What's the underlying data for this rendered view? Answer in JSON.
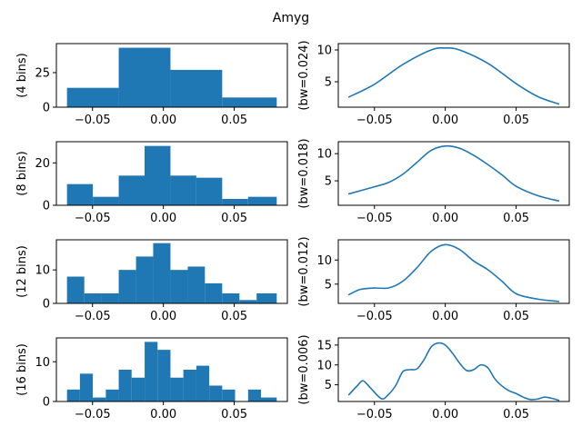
{
  "chart_data": {
    "title": "Amyg",
    "xticks": [
      -0.05,
      0.0,
      0.05
    ],
    "xtick_labels": [
      "−0.05",
      "0.00",
      "0.05"
    ],
    "xlim": [
      -0.0755,
      0.0875
    ],
    "histograms": [
      {
        "type": "bar",
        "ylabel": "(4 bins)",
        "ylim": [
          0,
          46
        ],
        "yticks": [
          0,
          25
        ],
        "edges": [
          -0.068,
          -0.0315,
          0.005,
          0.0415,
          0.08
        ],
        "counts": [
          14,
          43,
          27,
          7
        ]
      },
      {
        "type": "bar",
        "ylabel": "(8 bins)",
        "ylim": [
          0,
          30
        ],
        "yticks": [
          0,
          20
        ],
        "edges": [
          -0.068,
          -0.04975,
          -0.0315,
          -0.01325,
          0.005,
          0.02325,
          0.0415,
          0.05975,
          0.08
        ],
        "counts": [
          10,
          4,
          14,
          28,
          14,
          13,
          3,
          4
        ]
      },
      {
        "type": "bar",
        "ylabel": "(12 bins)",
        "ylim": [
          0,
          19
        ],
        "yticks": [
          0,
          10
        ],
        "edges": [
          -0.068,
          -0.0558,
          -0.0437,
          -0.0315,
          -0.0193,
          -0.0072,
          0.005,
          0.0172,
          0.0293,
          0.0415,
          0.0537,
          0.0658,
          0.08
        ],
        "counts": [
          8,
          3,
          3,
          10,
          14,
          18,
          10,
          11,
          6,
          3,
          1,
          3
        ]
      },
      {
        "type": "bar",
        "ylabel": "(16 bins)",
        "ylim": [
          0,
          16
        ],
        "yticks": [
          0,
          10
        ],
        "edges": [
          -0.068,
          -0.0589,
          -0.0498,
          -0.0406,
          -0.0315,
          -0.0224,
          -0.0132,
          -0.0041,
          0.005,
          0.0141,
          0.0233,
          0.0324,
          0.0415,
          0.0506,
          0.0598,
          0.0689,
          0.08
        ],
        "counts": [
          3,
          7,
          1,
          3,
          8,
          6,
          15,
          13,
          6,
          8,
          9,
          4,
          3,
          0,
          3,
          1
        ]
      }
    ],
    "kdes": [
      {
        "type": "line",
        "ylabel": "(bw=0.024)",
        "ylim": [
          1.0,
          11.0
        ],
        "yticks": [
          5,
          10
        ],
        "x": [
          -0.068,
          -0.05,
          -0.03,
          -0.01,
          0.0,
          0.01,
          0.03,
          0.05,
          0.065,
          0.08
        ],
        "y": [
          2.6,
          4.6,
          7.7,
          10.0,
          10.3,
          10.0,
          7.9,
          4.7,
          2.7,
          1.5
        ]
      },
      {
        "type": "line",
        "ylabel": "(bw=0.018)",
        "ylim": [
          0.5,
          12.2
        ],
        "yticks": [
          5,
          10
        ],
        "x": [
          -0.068,
          -0.05,
          -0.04,
          -0.03,
          -0.02,
          -0.01,
          0.0,
          0.01,
          0.02,
          0.03,
          0.04,
          0.05,
          0.065,
          0.08
        ],
        "y": [
          2.6,
          3.9,
          4.7,
          6.2,
          8.4,
          10.6,
          11.4,
          11.0,
          9.7,
          8.0,
          6.1,
          4.0,
          2.3,
          1.3
        ]
      },
      {
        "type": "line",
        "ylabel": "(bw=0.012)",
        "ylim": [
          1.0,
          14.2
        ],
        "yticks": [
          5,
          10
        ],
        "x": [
          -0.068,
          -0.06,
          -0.05,
          -0.04,
          -0.03,
          -0.02,
          -0.01,
          0.0,
          0.01,
          0.02,
          0.03,
          0.04,
          0.05,
          0.065,
          0.08
        ],
        "y": [
          2.8,
          3.9,
          4.2,
          4.2,
          5.6,
          8.4,
          11.8,
          13.2,
          12.2,
          9.8,
          8.0,
          5.6,
          3.0,
          1.9,
          1.4
        ]
      },
      {
        "type": "line",
        "ylabel": "(bw=0.006)",
        "ylim": [
          0.8,
          16.8
        ],
        "yticks": [
          5,
          10,
          15
        ],
        "x": [
          -0.068,
          -0.062,
          -0.058,
          -0.053,
          -0.045,
          -0.04,
          -0.035,
          -0.03,
          -0.025,
          -0.02,
          -0.015,
          -0.01,
          -0.005,
          0.0,
          0.005,
          0.01,
          0.015,
          0.02,
          0.025,
          0.03,
          0.035,
          0.04,
          0.045,
          0.05,
          0.055,
          0.06,
          0.065,
          0.07,
          0.075,
          0.08
        ],
        "y": [
          2.5,
          4.8,
          6.0,
          4.3,
          1.5,
          2.6,
          4.8,
          8.3,
          8.8,
          9.0,
          11.3,
          14.5,
          15.5,
          15.0,
          13.0,
          10.5,
          8.6,
          8.8,
          10.0,
          9.3,
          6.5,
          4.7,
          3.5,
          2.8,
          1.9,
          1.3,
          1.4,
          1.9,
          1.6,
          1.1
        ]
      }
    ],
    "colors": {
      "bar": "#1f77b4",
      "line": "#1f77b4",
      "axes": "#000000"
    }
  }
}
